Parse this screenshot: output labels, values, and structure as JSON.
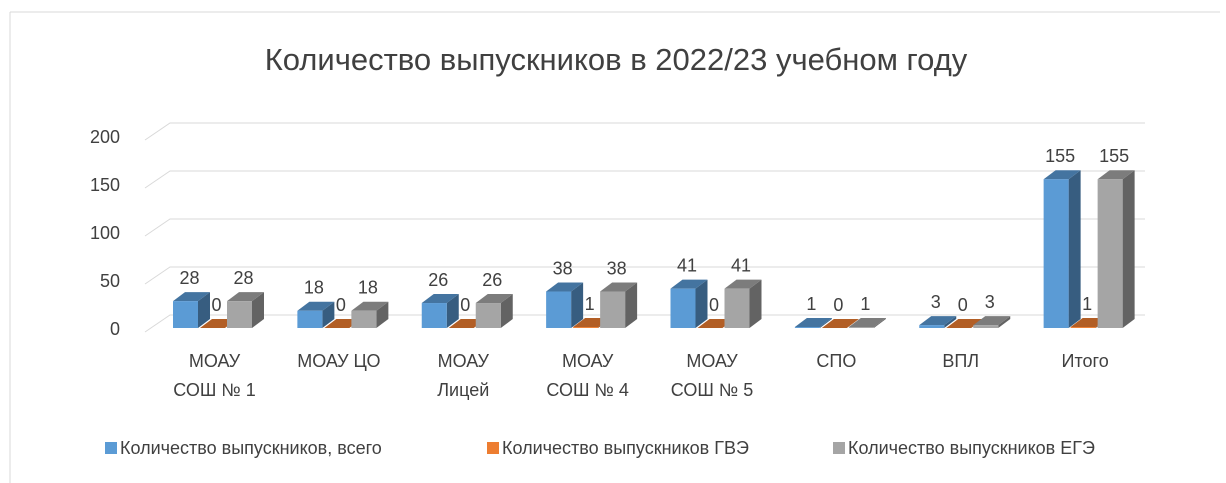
{
  "chart_data": {
    "type": "bar3d",
    "title": "Количество выпускников в 2022/23 учебном году",
    "categories": [
      [
        "МОАУ",
        "СОШ № 1"
      ],
      [
        "МОАУ ЦО"
      ],
      [
        "МОАУ",
        "Лицей"
      ],
      [
        "МОАУ",
        "СОШ № 4"
      ],
      [
        "МОАУ",
        "СОШ № 5"
      ],
      [
        "СПО"
      ],
      [
        "ВПЛ"
      ],
      [
        "Итого"
      ]
    ],
    "series": [
      {
        "name": "Количество выпускников, всего",
        "color": "#5b9bd5",
        "values": [
          28,
          18,
          26,
          38,
          41,
          1,
          3,
          155
        ]
      },
      {
        "name": "Количество выпускников ГВЭ",
        "color": "#ed7d31",
        "values": [
          0,
          0,
          0,
          1,
          0,
          0,
          0,
          1
        ]
      },
      {
        "name": "Количество выпускников ЕГЭ",
        "color": "#a5a5a5",
        "values": [
          28,
          18,
          26,
          38,
          41,
          1,
          3,
          155
        ]
      }
    ],
    "ylim": [
      0,
      200
    ],
    "yticks": [
      0,
      50,
      100,
      150,
      200
    ],
    "grid": true,
    "legend": "bottom"
  }
}
